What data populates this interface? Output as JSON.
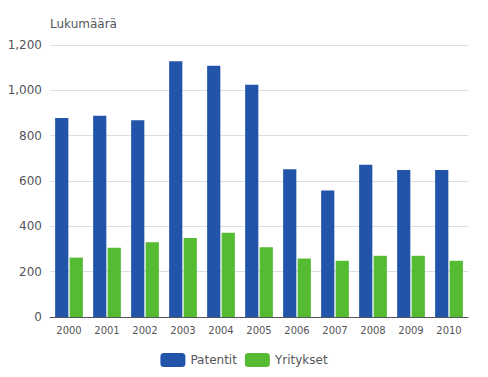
{
  "chart_data": {
    "type": "bar",
    "ylabel": "Lukumäärä",
    "categories": [
      "2000",
      "2001",
      "2002",
      "2003",
      "2004",
      "2005",
      "2006",
      "2007",
      "2008",
      "2009",
      "2010"
    ],
    "series": [
      {
        "name": "Patentit",
        "color": "#2255AA",
        "values": [
          878,
          888,
          868,
          1128,
          1108,
          1025,
          652,
          558,
          672,
          648,
          648
        ]
      },
      {
        "name": "Yritykset",
        "color": "#55BB33",
        "values": [
          262,
          305,
          330,
          348,
          372,
          308,
          258,
          248,
          270,
          270,
          248
        ]
      }
    ],
    "ylim": [
      0,
      1200
    ],
    "yticks": [
      0,
      200,
      400,
      600,
      800,
      1000,
      1200
    ],
    "grid": true,
    "legend": "bottom"
  }
}
